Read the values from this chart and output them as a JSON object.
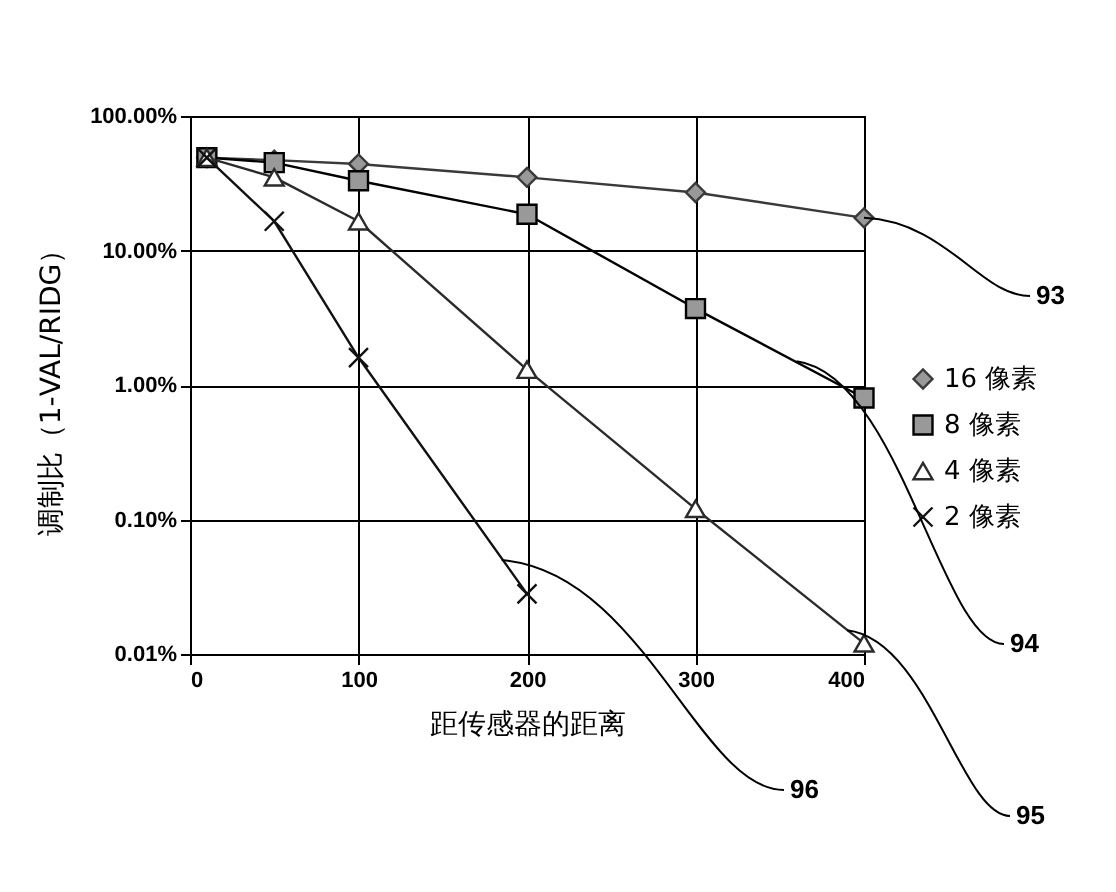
{
  "chart_data": {
    "type": "line",
    "xlabel": "距传感器的距离",
    "ylabel": "调制比（1-VAL/RIDG）",
    "x": [
      10,
      50,
      100,
      200,
      300,
      400
    ],
    "series": [
      {
        "name": "16 像素",
        "color": "#3a3a3a",
        "marker": "diamond",
        "values": [
          49,
          47,
          44,
          35,
          27,
          17.5
        ]
      },
      {
        "name": "8 像素",
        "color": "#000000",
        "marker": "square",
        "values": [
          49,
          45,
          33,
          18.6,
          3.7,
          0.8
        ]
      },
      {
        "name": "4 像素",
        "color": "#2b2b2b",
        "marker": "triangle",
        "values": [
          49,
          35,
          16.5,
          1.3,
          0.12,
          0.012
        ]
      },
      {
        "name": "2 像素",
        "color": "#111111",
        "marker": "cross",
        "x": [
          10,
          50,
          100,
          200
        ],
        "values": [
          49,
          16.5,
          1.6,
          0.028
        ]
      }
    ],
    "log": "y",
    "xlim": [
      0,
      400
    ],
    "xticks": [
      0,
      100,
      200,
      300,
      400
    ],
    "ylim": [
      0.01,
      100
    ],
    "yticks": [
      {
        "value": 0.01,
        "label": "0.01%"
      },
      {
        "value": 0.1,
        "label": "0.10%"
      },
      {
        "value": 1,
        "label": "1.00%"
      },
      {
        "value": 10,
        "label": "10.00%"
      },
      {
        "value": 100,
        "label": "100.00%"
      }
    ],
    "grid": true,
    "legend": "right",
    "annotations": [
      {
        "text": "93",
        "x": 400,
        "y": 17.5
      },
      {
        "text": "94",
        "x": 360,
        "y": 1.5
      },
      {
        "text": "95",
        "x": 390,
        "y": 0.015
      },
      {
        "text": "96",
        "x": 185,
        "y": 0.05
      }
    ]
  }
}
